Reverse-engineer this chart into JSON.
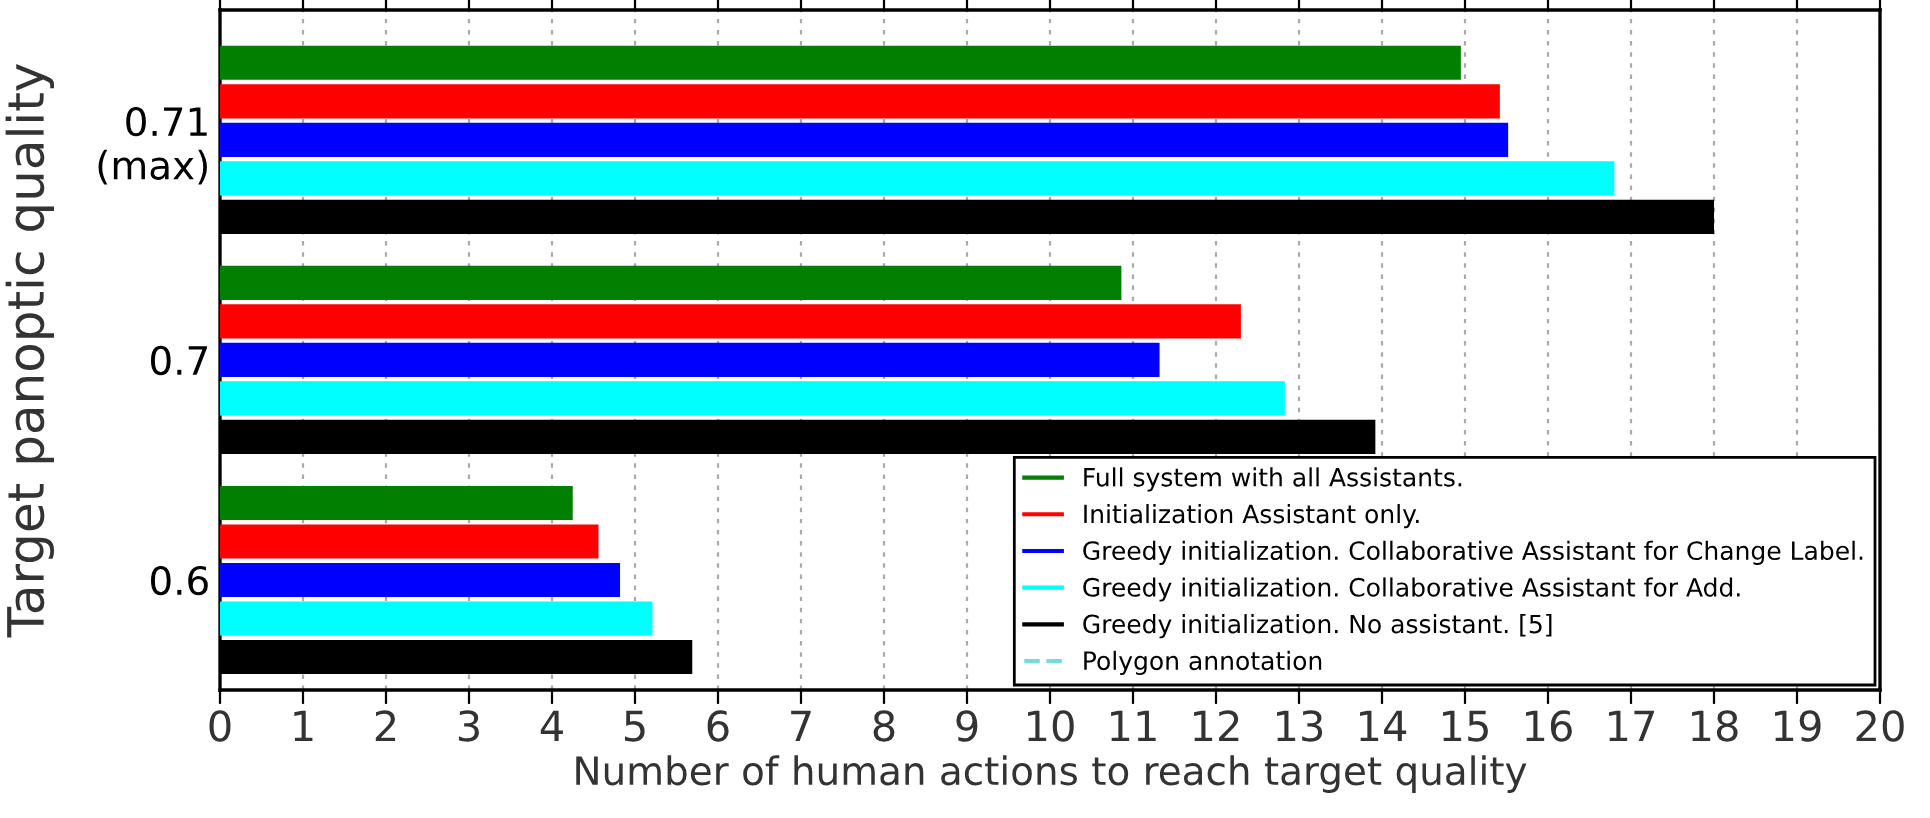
{
  "chart_data": {
    "type": "bar",
    "orientation": "horizontal",
    "xlabel": "Number of human actions to reach target quality",
    "ylabel": "Target panoptic quality",
    "categories": [
      "0.71\n(max)",
      "0.7",
      "0.6"
    ],
    "series": [
      {
        "name": "Full system with all Assistants.",
        "color": "#007f00",
        "values": [
          14.95,
          10.86,
          4.25
        ]
      },
      {
        "name": "Initialization Assistant only.",
        "color": "#ff0000",
        "values": [
          15.42,
          12.3,
          4.56
        ]
      },
      {
        "name": "Greedy initialization. Collaborative Assistant for Change Label.",
        "color": "#0000ff",
        "values": [
          15.52,
          11.32,
          4.82
        ]
      },
      {
        "name": "Greedy initialization. Collaborative Assistant for Add.",
        "color": "#00ffff",
        "values": [
          16.8,
          12.83,
          5.21
        ]
      },
      {
        "name": "Greedy initialization. No assistant. [5]",
        "color": "#000000",
        "values": [
          18.0,
          13.92,
          5.69
        ]
      },
      {
        "name": "Polygon annotation",
        "color": "#7fd8d8",
        "type": "line",
        "line_style": "dashed",
        "values": [
          null,
          null,
          null
        ]
      }
    ],
    "xlim": [
      0,
      20
    ],
    "xticks": [
      0,
      1,
      2,
      3,
      4,
      5,
      6,
      7,
      8,
      9,
      10,
      11,
      12,
      13,
      14,
      15,
      16,
      17,
      18,
      19,
      20
    ],
    "grid": "x",
    "legend": "bottom right"
  }
}
